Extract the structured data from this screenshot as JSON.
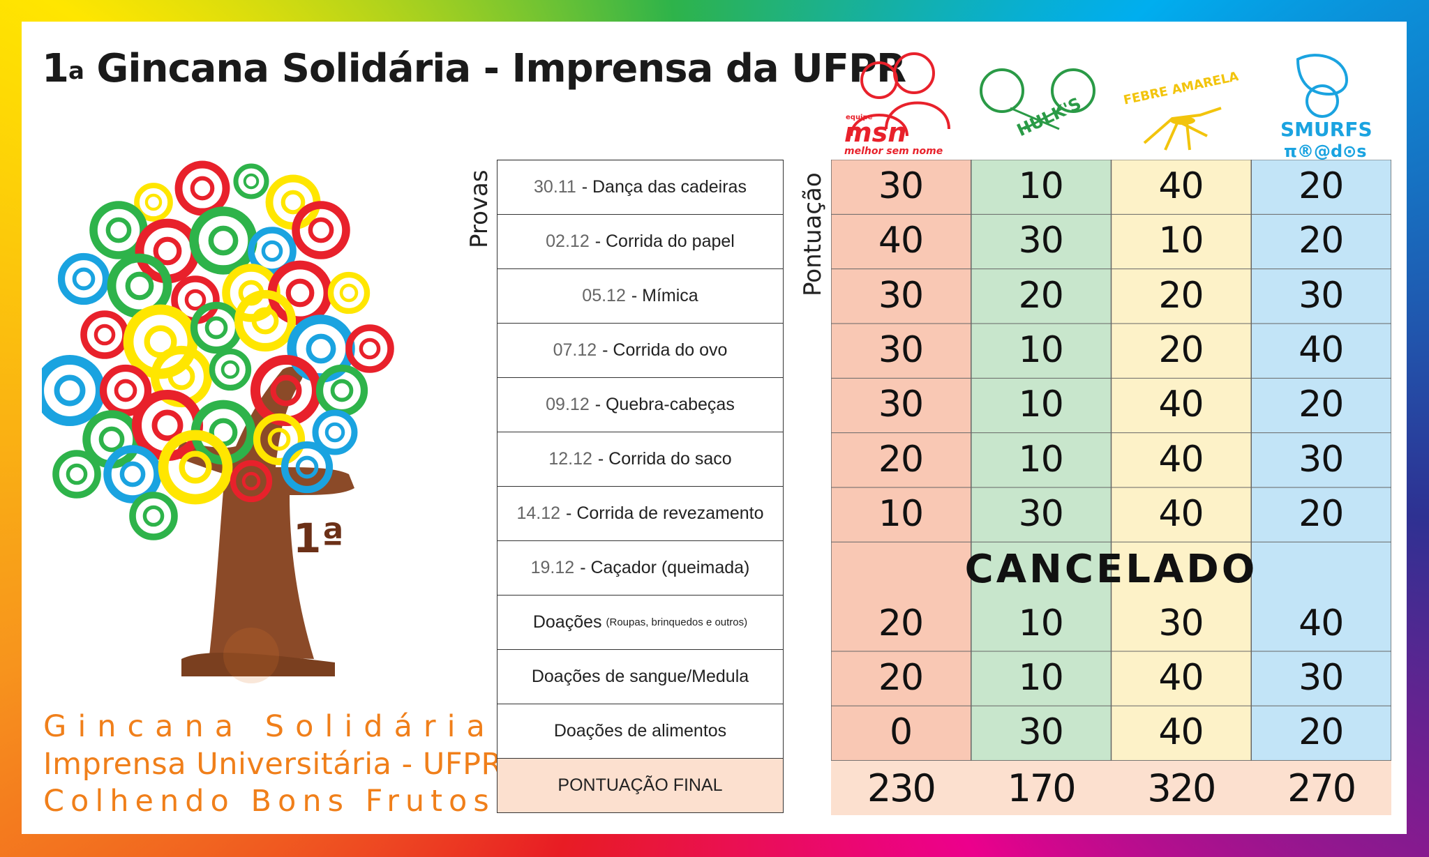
{
  "title": "1ª Gincana Solidária - Imprensa da UFPR",
  "title_main": "Gincana Solidária - Imprensa da UFPR",
  "title_prefix": "1",
  "title_sup": "a",
  "tree_badge": "1ª",
  "tagline": [
    "Gincana Solidária",
    "Imprensa Universitária - UFPR",
    "Colhendo Bons Frutos"
  ],
  "labels": {
    "provas": "Provas",
    "pontuacao": "Pontuação"
  },
  "teams": [
    {
      "name": "msn",
      "logo_lines": [
        "equipe",
        "msn",
        "melhor sem nome"
      ],
      "color": "#f9c8b4"
    },
    {
      "name": "HULK'S",
      "logo_lines": [
        "HULK'S"
      ],
      "color": "#c8e6cc"
    },
    {
      "name": "FEBRE AMARELA",
      "logo_lines": [
        "FEBRE AMARELA"
      ],
      "color": "#fdf2c8"
    },
    {
      "name": "SMURFS",
      "logo_lines": [
        "SMURFS",
        "π®@d⊙s"
      ],
      "color": "#c2e4f7"
    }
  ],
  "events": [
    {
      "date": "30.11",
      "name": "- Dança das cadeiras",
      "small": "",
      "scores": [
        "30",
        "10",
        "40",
        "20"
      ]
    },
    {
      "date": "02.12",
      "name": "- Corrida do papel",
      "small": "",
      "scores": [
        "40",
        "30",
        "10",
        "20"
      ]
    },
    {
      "date": "05.12",
      "name": "- Mímica",
      "small": "",
      "scores": [
        "30",
        "20",
        "20",
        "30"
      ]
    },
    {
      "date": "07.12",
      "name": "- Corrida do ovo",
      "small": "",
      "scores": [
        "30",
        "10",
        "20",
        "40"
      ]
    },
    {
      "date": "09.12",
      "name": "- Quebra-cabeças",
      "small": "",
      "scores": [
        "30",
        "10",
        "40",
        "20"
      ]
    },
    {
      "date": "12.12",
      "name": "- Corrida do saco",
      "small": "",
      "scores": [
        "20",
        "10",
        "40",
        "30"
      ]
    },
    {
      "date": "14.12",
      "name": "- Corrida de revezamento",
      "small": "",
      "scores": [
        "10",
        "30",
        "40",
        "20"
      ]
    },
    {
      "date": "19.12",
      "name": "- Caçador (queimada)",
      "small": "",
      "scores": []
    },
    {
      "date": "",
      "name": "Doações",
      "small": "(Roupas, brinquedos e outros)",
      "scores": [
        "20",
        "10",
        "30",
        "40"
      ]
    },
    {
      "date": "",
      "name": "Doações de sangue/Medula",
      "small": "",
      "scores": [
        "20",
        "10",
        "40",
        "30"
      ]
    },
    {
      "date": "",
      "name": "Doações de alimentos",
      "small": "",
      "scores": [
        "0",
        "30",
        "40",
        "20"
      ]
    }
  ],
  "cancelled_label": "CANCELADO",
  "final_label": "PONTUAÇÃO FINAL",
  "final_scores": [
    "230",
    "170",
    "320",
    "270"
  ]
}
